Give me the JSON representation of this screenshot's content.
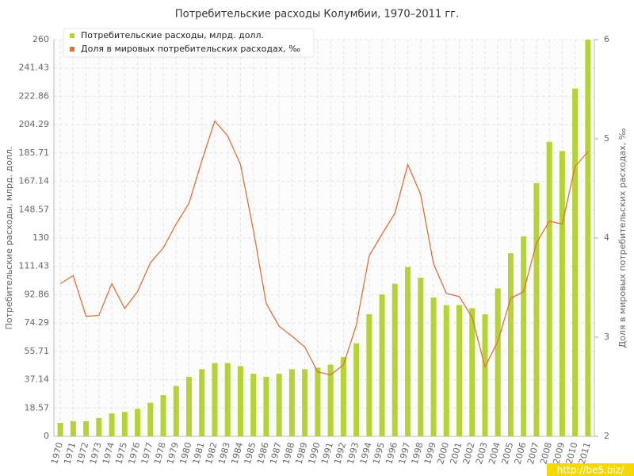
{
  "chart_data": {
    "type": "bar-line",
    "title": "Потребительские расходы Колумбии, 1970–2011 гг.",
    "y_label": "Потребительские расходы, млрд. долл.",
    "y2_label": "Доля в мировых потребительских расходах, ‰",
    "watermark": "http://be5.biz/",
    "categories": [
      "1970",
      "1971",
      "1972",
      "1973",
      "1974",
      "1975",
      "1976",
      "1977",
      "1978",
      "1979",
      "1980",
      "1981",
      "1982",
      "1983",
      "1984",
      "1985",
      "1986",
      "1987",
      "1988",
      "1989",
      "1990",
      "1991",
      "1992",
      "1993",
      "1994",
      "1995",
      "1996",
      "1997",
      "1998",
      "1999",
      "2000",
      "2001",
      "2002",
      "2003",
      "2004",
      "2005",
      "2006",
      "2007",
      "2008",
      "2009",
      "2010",
      "2011"
    ],
    "series": [
      {
        "name": "Потребительские расходы, млрд. долл.",
        "color": "#b5d334",
        "kind": "bar",
        "values": [
          8.8,
          9.9,
          9.9,
          12,
          15,
          16,
          18,
          22,
          27,
          33,
          39,
          44,
          48,
          48,
          46,
          41,
          39,
          41,
          44,
          44,
          45,
          47,
          52,
          61,
          80,
          93,
          100,
          111,
          104,
          91,
          86,
          86,
          84,
          80,
          97,
          120,
          131,
          166,
          193,
          187,
          228,
          260
        ]
      },
      {
        "name": "Доля в мировых потребительских расходах, ‰",
        "color": "#e0703a",
        "kind": "line",
        "axis": "y2",
        "values": [
          3.54,
          3.62,
          3.21,
          3.22,
          3.54,
          3.29,
          3.46,
          3.75,
          3.9,
          4.14,
          4.35,
          4.78,
          5.18,
          5.03,
          4.74,
          4.08,
          3.34,
          3.11,
          3.01,
          2.9,
          2.65,
          2.62,
          2.72,
          3.12,
          3.82,
          4.04,
          4.25,
          4.74,
          4.44,
          3.74,
          3.44,
          3.41,
          3.2,
          2.7,
          2.96,
          3.39,
          3.46,
          3.95,
          4.17,
          4.14,
          4.72,
          4.87
        ]
      }
    ],
    "ylim": [
      0,
      260
    ],
    "yticks": [
      0,
      18.57,
      37.14,
      55.71,
      74.29,
      92.86,
      111.43,
      130,
      148.57,
      167.14,
      185.71,
      204.29,
      222.86,
      241.43,
      260
    ],
    "y2lim": [
      2,
      6
    ],
    "y2ticks": [
      2,
      3,
      4,
      5,
      6
    ],
    "grid": true,
    "legend": "top-left"
  }
}
